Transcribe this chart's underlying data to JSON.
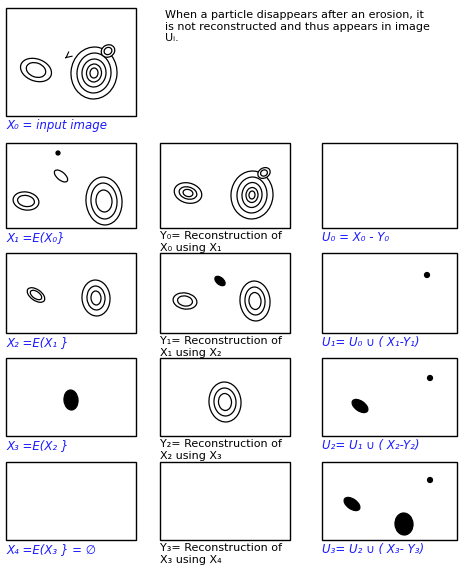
{
  "bg_color": "#ffffff",
  "blue_color": "#1a1aff",
  "black": "#000000",
  "annotation_text": "When a particle disappears after an erosion, it\nis not reconstructed and thus appears in image\nUᵢ.",
  "labels": {
    "X0": "X₀ = input image",
    "X1": "X₁ =E(X₀}",
    "X2": "X₂ =E(X₁ }",
    "X3": "X₃ =E(X₂ }",
    "X4": "X₄ =E(X₃ } = ∅",
    "Y0": "Y₀= Reconstruction of\nX₀ using X₁",
    "Y1": "Y₁= Reconstruction of\nX₁ using X₂",
    "Y2": "Y₂= Reconstruction of\nX₂ using X₃",
    "Y3": "Y₃= Reconstruction of\nX₃ using X₄",
    "U0": "U₀ = X₀ - Y₀",
    "U1": "U₁= U₀ ∪ ( X₁-Y₁)",
    "U2": "U₂= U₁ ∪ ( X₂-Y₂)",
    "U3": "U₃= U₂ ∪ ( X₃- Y₃)"
  },
  "fig_w": 4.67,
  "fig_h": 5.69,
  "dpi": 100
}
